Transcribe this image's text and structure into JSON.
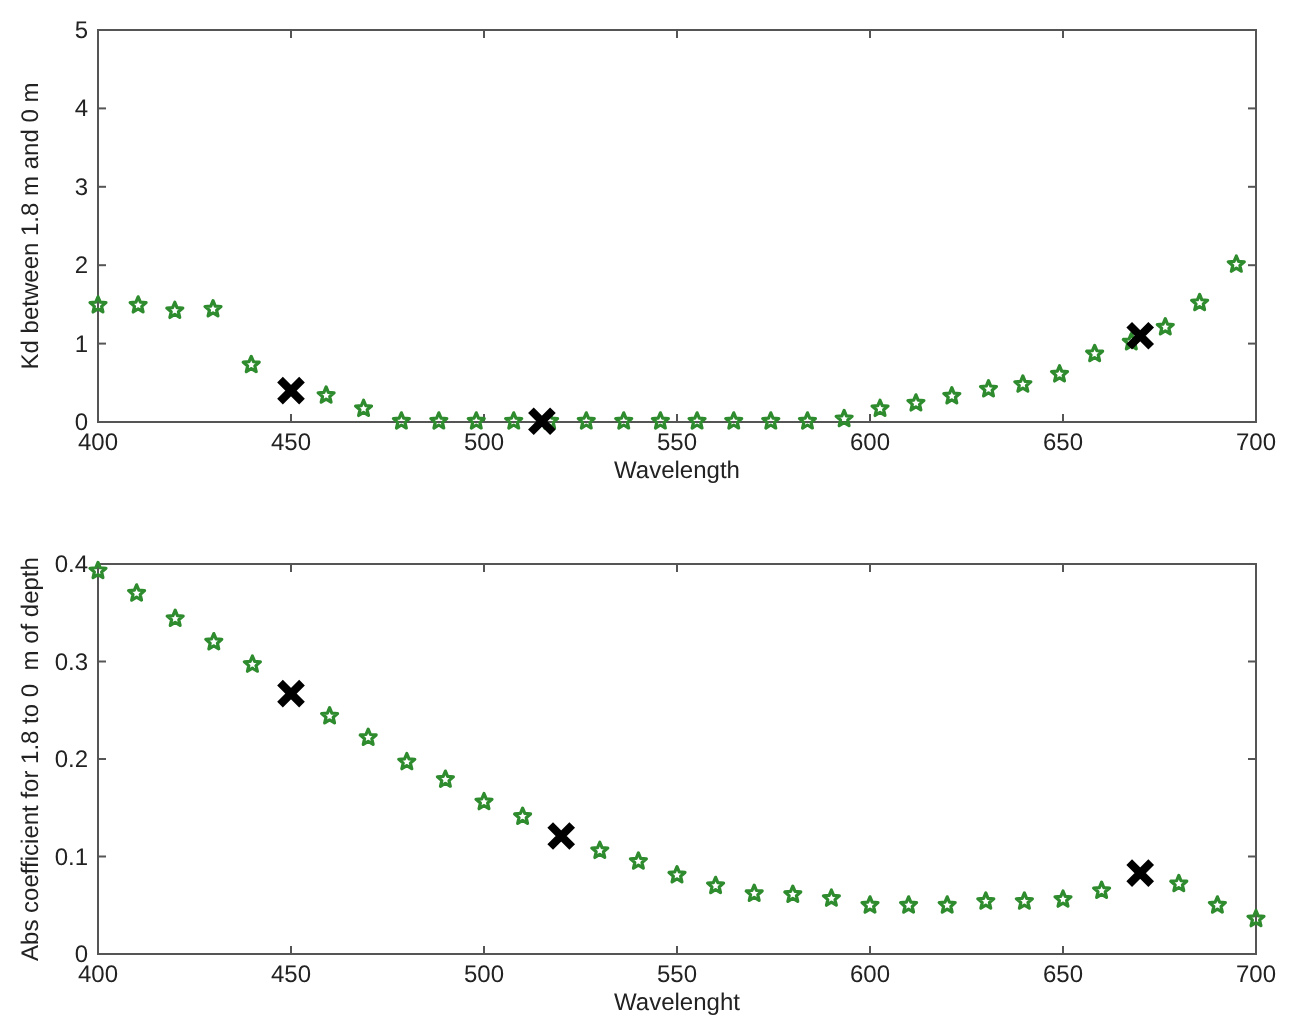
{
  "chart_data": [
    {
      "type": "scatter",
      "xlabel": "Wavelength",
      "ylabel": "Kd between 1.8 m and 0 m",
      "xlim": [
        400,
        700
      ],
      "ylim": [
        0,
        5
      ],
      "xticks": [
        400,
        450,
        500,
        550,
        600,
        650,
        700
      ],
      "yticks": [
        0,
        1,
        2,
        3,
        4,
        5
      ],
      "grid": false,
      "series": [
        {
          "color": "#2e8b2e",
          "marker": "star",
          "x": [
            400,
            410.4,
            419.9,
            429.8,
            439.7,
            459.1,
            468.8,
            478.6,
            488.3,
            498,
            507.7,
            517,
            526.5,
            536.2,
            545.7,
            555.2,
            564.7,
            574.3,
            583.8,
            593.3,
            602.6,
            611.9,
            621.2,
            630.7,
            639.6,
            649.1,
            658.2,
            667.7,
            676.5,
            685.4,
            694.9
          ],
          "values": [
            1.49,
            1.49,
            1.42,
            1.44,
            0.73,
            0.34,
            0.17,
            0.01,
            0.01,
            0.01,
            0.01,
            0.01,
            0.01,
            0.01,
            0.01,
            0.01,
            0.01,
            0.01,
            0.01,
            0.04,
            0.17,
            0.24,
            0.33,
            0.42,
            0.48,
            0.61,
            0.87,
            1.02,
            1.21,
            1.52,
            2.01
          ]
        },
        {
          "color": "#000000",
          "marker": "cross",
          "x": [
            450,
            515,
            670
          ],
          "values": [
            0.4,
            0.01,
            1.1
          ]
        }
      ]
    },
    {
      "type": "scatter",
      "xlabel": "Wavelenght",
      "ylabel": "Abs coefficient for 1.8 to 0  m of depth",
      "xlim": [
        400,
        700
      ],
      "ylim": [
        0,
        0.4
      ],
      "xticks": [
        400,
        450,
        500,
        550,
        600,
        650,
        700
      ],
      "yticks": [
        0,
        0.1,
        0.2,
        0.3,
        0.4
      ],
      "grid": false,
      "series": [
        {
          "color": "#2e8b2e",
          "marker": "star",
          "x": [
            400,
            410,
            420,
            430,
            440,
            460,
            470,
            480,
            490,
            500,
            510,
            530,
            540,
            550,
            560,
            570,
            580,
            590,
            600,
            610,
            620,
            630,
            640,
            650,
            660,
            680,
            690,
            700
          ],
          "values": [
            0.393,
            0.37,
            0.344,
            0.32,
            0.297,
            0.244,
            0.222,
            0.197,
            0.179,
            0.156,
            0.141,
            0.106,
            0.095,
            0.081,
            0.07,
            0.062,
            0.061,
            0.057,
            0.05,
            0.05,
            0.05,
            0.054,
            0.054,
            0.056,
            0.065,
            0.072,
            0.05,
            0.036
          ]
        },
        {
          "color": "#000000",
          "marker": "cross",
          "x": [
            450,
            520,
            670
          ],
          "values": [
            0.267,
            0.121,
            0.083
          ]
        }
      ]
    }
  ]
}
